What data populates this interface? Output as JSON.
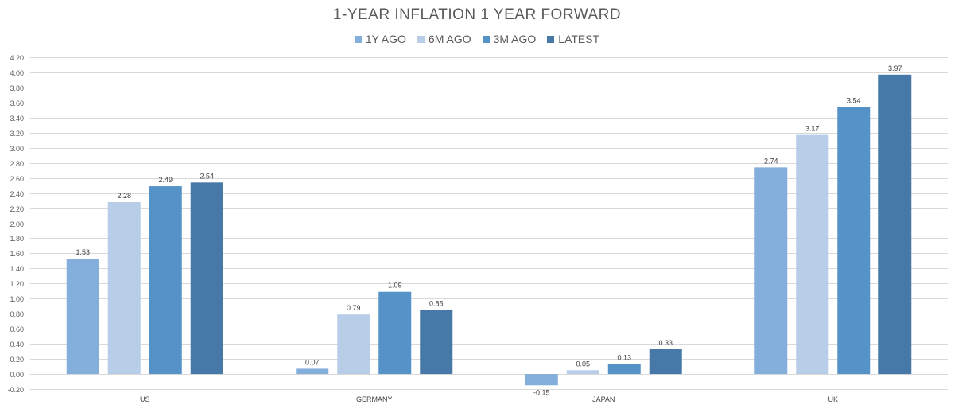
{
  "chart_data": {
    "type": "bar",
    "title": "1-YEAR INFLATION 1 YEAR FORWARD",
    "categories": [
      "US",
      "GERMANY",
      "JAPAN",
      "UK"
    ],
    "series": [
      {
        "name": "1Y AGO",
        "color": "#84AEDB",
        "values": [
          1.53,
          0.07,
          -0.15,
          2.74
        ]
      },
      {
        "name": "6M AGO",
        "color": "#B8CDE7",
        "values": [
          2.28,
          0.79,
          0.05,
          3.17
        ]
      },
      {
        "name": "3M AGO",
        "color": "#5592C8",
        "values": [
          2.49,
          1.09,
          0.13,
          3.54
        ]
      },
      {
        "name": "LATEST",
        "color": "#4679A8",
        "values": [
          2.54,
          0.85,
          0.33,
          3.97
        ]
      }
    ],
    "ylim": [
      -0.2,
      4.2
    ],
    "yticks": [
      "-0.20",
      "0.00",
      "0.20",
      "0.40",
      "0.60",
      "0.80",
      "1.00",
      "1.20",
      "1.40",
      "1.60",
      "1.80",
      "2.00",
      "2.20",
      "2.40",
      "2.60",
      "2.80",
      "3.00",
      "3.20",
      "3.40",
      "3.60",
      "3.80",
      "4.00",
      "4.20"
    ],
    "xlabel": "",
    "ylabel": "",
    "grid": true,
    "legend_position": "top-center"
  }
}
